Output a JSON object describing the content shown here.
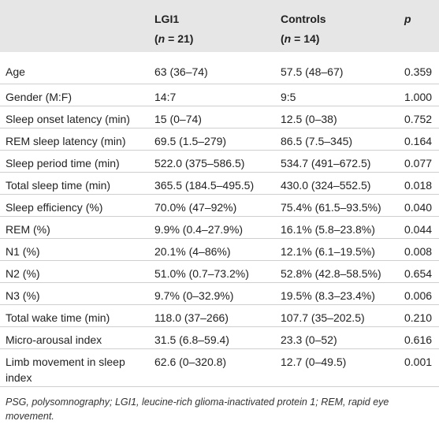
{
  "table": {
    "header": [
      {
        "title": "LGI1",
        "n": [
          "(",
          "n",
          " = 21)"
        ]
      },
      {
        "title": "Controls",
        "n": [
          "(",
          "n",
          " = 14)"
        ]
      },
      {
        "title": "p"
      }
    ],
    "rows": [
      [
        "Age",
        "63 (36–74)",
        "57.5 (48–67)",
        "0.359"
      ],
      [
        "Gender (M:F)",
        "14:7",
        "9:5",
        "1.000"
      ],
      [
        "Sleep onset latency (min)",
        "15 (0–74)",
        "12.5 (0–38)",
        "0.752"
      ],
      [
        "REM sleep latency (min)",
        "69.5 (1.5–279)",
        "86.5 (7.5–345)",
        "0.164"
      ],
      [
        "Sleep period time (min)",
        "522.0 (375–586.5)",
        "534.7 (491–672.5)",
        "0.077"
      ],
      [
        "Total sleep time (min)",
        "365.5 (184.5–495.5)",
        "430.0 (324–552.5)",
        "0.018"
      ],
      [
        "Sleep efficiency (%)",
        "70.0% (47–92%)",
        "75.4% (61.5–93.5%)",
        "0.040"
      ],
      [
        "REM (%)",
        "9.9% (0.4–27.9%)",
        "16.1% (5.8–23.8%)",
        "0.044"
      ],
      [
        "N1 (%)",
        "20.1% (4–86%)",
        "12.1% (6.1–19.5%)",
        "0.008"
      ],
      [
        "N2 (%)",
        "51.0% (0.7–73.2%)",
        "52.8% (42.8–58.5%)",
        "0.654"
      ],
      [
        "N3 (%)",
        "9.7% (0–32.9%)",
        "19.5% (8.3–23.4%)",
        "0.006"
      ],
      [
        "Total wake time (min)",
        "118.0 (37–266)",
        "107.7 (35–202.5)",
        "0.210"
      ],
      [
        "Micro-arousal index",
        "31.5 (6.8–59.4)",
        "23.3 (0–52)",
        "0.616"
      ],
      [
        "Limb movement in sleep index",
        "62.6 (0–320.8)",
        "12.7 (0–49.5)",
        "0.001"
      ]
    ]
  },
  "footnote": "PSG, polysomnography; LGI1, leucine-rich glioma-inactivated protein 1; REM, rapid eye movement."
}
